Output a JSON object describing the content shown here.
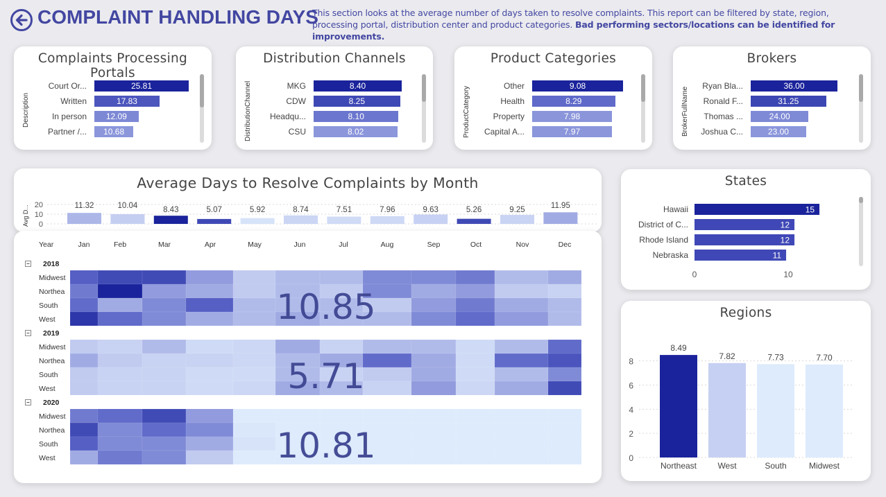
{
  "header": {
    "title": "COMPLAINT HANDLING DAYS",
    "desc_plain": "This section looks at the average number of days taken to resolve complaints. This report can be filtered by state, region, processing portal, distribution center and product categories. ",
    "desc_bold": "Bad performing sectors/locations can be identified for improvements."
  },
  "colors": {
    "accent": "#4347a1",
    "dark": "#1a239b",
    "mid": "#5b66c8",
    "light": "#c6d0f2",
    "palest": "#ddebfc"
  },
  "chart_data": [
    {
      "type": "bar",
      "orientation": "horizontal",
      "title": "Complaints Processing Portals",
      "ylabel": "Description",
      "categories": [
        "Court Or...",
        "Written",
        "In person",
        "Partner /..."
      ],
      "values": [
        25.81,
        17.83,
        12.09,
        10.68
      ],
      "labels": [
        "25.81",
        "17.83",
        "12.09",
        "10.68"
      ]
    },
    {
      "type": "bar",
      "orientation": "horizontal",
      "title": "Distribution Channels",
      "ylabel": "DistributionChannel",
      "categories": [
        "MKG",
        "CDW",
        "Headqu...",
        "CSU"
      ],
      "values": [
        8.4,
        8.25,
        8.1,
        8.02
      ],
      "labels": [
        "8.40",
        "8.25",
        "8.10",
        "8.02"
      ]
    },
    {
      "type": "bar",
      "orientation": "horizontal",
      "title": "Product Categories",
      "ylabel": "ProductCategory",
      "categories": [
        "Other",
        "Health",
        "Property",
        "Capital A..."
      ],
      "values": [
        9.08,
        8.29,
        7.98,
        7.97
      ],
      "labels": [
        "9.08",
        "8.29",
        "7.98",
        "7.97"
      ]
    },
    {
      "type": "bar",
      "orientation": "horizontal",
      "title": "Brokers",
      "ylabel": "BrokerFullName",
      "categories": [
        "Ryan Bla...",
        "Ronald F...",
        "Thomas ...",
        "Joshua C..."
      ],
      "values": [
        36.0,
        31.25,
        24.0,
        23.0
      ],
      "labels": [
        "36.00",
        "31.25",
        "24.00",
        "23.00"
      ]
    },
    {
      "type": "bar",
      "title": "Average Days to Resolve Complaints by Month",
      "ylabel": "Avg D...",
      "categories": [
        "Jan",
        "Feb",
        "Mar",
        "Apr",
        "May",
        "Jun",
        "Jul",
        "Aug",
        "Sep",
        "Oct",
        "Nov",
        "Dec"
      ],
      "values": [
        11.32,
        10.04,
        8.43,
        5.07,
        5.92,
        8.74,
        7.51,
        7.96,
        9.63,
        5.26,
        9.25,
        11.95
      ],
      "labels": [
        "11.32",
        "10.04",
        "8.43",
        "5.07",
        "5.92",
        "8.74",
        "7.51",
        "7.96",
        "9.63",
        "5.26",
        "9.25",
        "11.95"
      ],
      "yticks": [
        "20",
        "10",
        "0"
      ],
      "ylim": [
        0,
        20
      ]
    },
    {
      "type": "heatmap",
      "xlabel": "Year",
      "columns": [
        "Jan",
        "Feb",
        "Mar",
        "Apr",
        "May",
        "Jun",
        "Jul",
        "Aug",
        "Sep",
        "Oct",
        "Nov",
        "Dec"
      ],
      "rows": [
        "Midwest",
        "Northea",
        "South",
        "West"
      ],
      "groups": [
        {
          "year": "2018",
          "total": "10.85",
          "intensity": [
            [
              0.7,
              0.8,
              0.8,
              0.5,
              0.35,
              0.4,
              0.4,
              0.55,
              0.55,
              0.6,
              0.4,
              0.45
            ],
            [
              0.6,
              1.0,
              0.5,
              0.45,
              0.35,
              0.4,
              0.35,
              0.55,
              0.45,
              0.5,
              0.35,
              0.3
            ],
            [
              0.65,
              0.45,
              0.55,
              0.7,
              0.4,
              0.4,
              0.4,
              0.35,
              0.5,
              0.6,
              0.45,
              0.4
            ],
            [
              0.9,
              0.65,
              0.55,
              0.45,
              0.4,
              0.45,
              0.4,
              0.4,
              0.55,
              0.65,
              0.5,
              0.4
            ]
          ]
        },
        {
          "year": "2019",
          "total": "5.71",
          "intensity": [
            [
              0.35,
              0.3,
              0.4,
              0.2,
              0.25,
              0.45,
              0.3,
              0.4,
              0.4,
              0.2,
              0.4,
              0.65
            ],
            [
              0.45,
              0.35,
              0.3,
              0.3,
              0.25,
              0.4,
              0.45,
              0.65,
              0.45,
              0.2,
              0.65,
              0.75
            ],
            [
              0.35,
              0.3,
              0.3,
              0.2,
              0.2,
              0.4,
              0.3,
              0.35,
              0.45,
              0.2,
              0.4,
              0.55
            ],
            [
              0.35,
              0.3,
              0.3,
              0.2,
              0.25,
              0.45,
              0.4,
              0.3,
              0.5,
              0.25,
              0.45,
              0.8
            ]
          ]
        },
        {
          "year": "2020",
          "total": "10.81",
          "intensity": [
            [
              0.6,
              0.65,
              0.8,
              0.5,
              0.0,
              0.0,
              0.0,
              0.0,
              0.0,
              0.0,
              0.0,
              0.0
            ],
            [
              0.8,
              0.55,
              0.65,
              0.55,
              0.05,
              0.0,
              0.0,
              0.0,
              0.0,
              0.0,
              0.0,
              0.0
            ],
            [
              0.7,
              0.55,
              0.55,
              0.45,
              0.1,
              0.0,
              0.0,
              0.0,
              0.0,
              0.0,
              0.0,
              0.0
            ],
            [
              0.45,
              0.6,
              0.55,
              0.35,
              0.0,
              0.0,
              0.0,
              0.0,
              0.0,
              0.0,
              0.0,
              0.0
            ]
          ]
        }
      ]
    },
    {
      "type": "bar",
      "orientation": "horizontal",
      "title": "States",
      "categories": [
        "Hawaii",
        "District of C...",
        "Rhode Island",
        "Nebraska"
      ],
      "values": [
        15,
        12,
        12,
        11
      ],
      "labels": [
        "15",
        "12",
        "12",
        "11"
      ],
      "xticks": [
        "0",
        "10"
      ],
      "xlim": [
        0,
        20
      ]
    },
    {
      "type": "bar",
      "title": "Regions",
      "categories": [
        "Northeast",
        "West",
        "South",
        "Midwest"
      ],
      "values": [
        8.49,
        7.82,
        7.73,
        7.7
      ],
      "labels": [
        "8.49",
        "7.82",
        "7.73",
        "7.70"
      ],
      "yticks": [
        "8",
        "6",
        "4",
        "2",
        "0"
      ],
      "ylim": [
        0,
        9.3
      ]
    }
  ]
}
